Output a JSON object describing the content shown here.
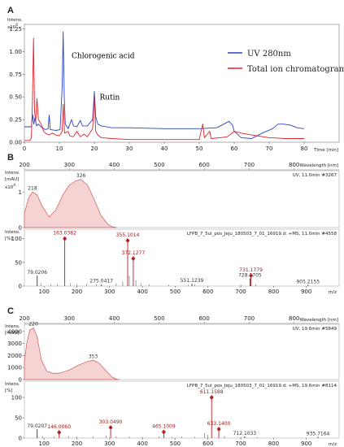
{
  "panels": {
    "a": "A",
    "b": "B",
    "c": "C"
  },
  "colors": {
    "uv": "#2a43c7",
    "tic": "#e0202a",
    "ms": "#b81c24",
    "fill": "#f6d3d3",
    "fill_stroke": "#c85a5a",
    "grid": "#dddddd"
  },
  "chart_data": [
    {
      "id": "A",
      "type": "line",
      "ylabel": "Intens.",
      "yunit": "x10^6",
      "yunit_base": "x10",
      "yunit_exp": "6",
      "xunit": "Time [min]",
      "xlim": [
        0,
        90
      ],
      "ylim": [
        0,
        1.3
      ],
      "xticks": [
        0,
        10,
        20,
        30,
        40,
        50,
        60,
        70,
        80
      ],
      "yticks": [
        "0.00",
        "0.25",
        "0.50",
        "0.75",
        "1.00",
        "1.25"
      ],
      "legend_position": "top-right",
      "series": [
        {
          "name": "UV 280nm",
          "color": "#2a43c7",
          "points": [
            [
              0,
              0.17
            ],
            [
              2,
              0.17
            ],
            [
              2.4,
              0.3
            ],
            [
              2.7,
              0.2
            ],
            [
              3,
              0.27
            ],
            [
              3.5,
              0.18
            ],
            [
              4,
              0.2
            ],
            [
              5,
              0.16
            ],
            [
              6,
              0.14
            ],
            [
              6.8,
              0.15
            ],
            [
              7.1,
              0.3
            ],
            [
              7.4,
              0.14
            ],
            [
              9,
              0.13
            ],
            [
              10.2,
              0.14
            ],
            [
              10.8,
              0.6
            ],
            [
              11.1,
              1.22
            ],
            [
              11.4,
              0.5
            ],
            [
              11.7,
              0.2
            ],
            [
              12.5,
              0.15
            ],
            [
              13.5,
              0.25
            ],
            [
              14,
              0.18
            ],
            [
              15,
              0.17
            ],
            [
              16,
              0.24
            ],
            [
              16.6,
              0.18
            ],
            [
              18,
              0.18
            ],
            [
              19.5,
              0.25
            ],
            [
              20,
              0.56
            ],
            [
              20.4,
              0.28
            ],
            [
              21,
              0.2
            ],
            [
              22,
              0.18
            ],
            [
              25,
              0.16
            ],
            [
              30,
              0.16
            ],
            [
              40,
              0.15
            ],
            [
              50,
              0.15
            ],
            [
              55,
              0.16
            ],
            [
              57,
              0.2
            ],
            [
              58.5,
              0.23
            ],
            [
              59.5,
              0.19
            ],
            [
              60,
              0.12
            ],
            [
              62,
              0.05
            ],
            [
              65,
              0.04
            ],
            [
              68,
              0.1
            ],
            [
              71,
              0.15
            ],
            [
              72.5,
              0.2
            ],
            [
              74,
              0.2
            ],
            [
              76,
              0.19
            ],
            [
              78,
              0.16
            ],
            [
              80,
              0.15
            ]
          ]
        },
        {
          "name": "Total ion chromatogram",
          "color": "#e0202a",
          "points": [
            [
              0,
              0.02
            ],
            [
              1.5,
              0.02
            ],
            [
              2,
              0.05
            ],
            [
              2.3,
              0.45
            ],
            [
              2.6,
              1.15
            ],
            [
              2.9,
              0.35
            ],
            [
              3.2,
              0.22
            ],
            [
              3.6,
              0.48
            ],
            [
              4,
              0.25
            ],
            [
              4.5,
              0.22
            ],
            [
              5,
              0.18
            ],
            [
              5.5,
              0.12
            ],
            [
              6,
              0.1
            ],
            [
              7,
              0.08
            ],
            [
              8,
              0.1
            ],
            [
              9,
              0.08
            ],
            [
              10,
              0.07
            ],
            [
              10.8,
              0.12
            ],
            [
              11.1,
              0.42
            ],
            [
              11.5,
              0.1
            ],
            [
              12.5,
              0.12
            ],
            [
              13,
              0.07
            ],
            [
              14,
              0.06
            ],
            [
              15,
              0.12
            ],
            [
              16,
              0.06
            ],
            [
              17,
              0.09
            ],
            [
              18,
              0.06
            ],
            [
              19.5,
              0.15
            ],
            [
              20,
              0.5
            ],
            [
              20.4,
              0.12
            ],
            [
              21,
              0.08
            ],
            [
              22,
              0.05
            ],
            [
              25,
              0.04
            ],
            [
              30,
              0.03
            ],
            [
              40,
              0.03
            ],
            [
              50,
              0.03
            ],
            [
              51,
              0.2
            ],
            [
              51.5,
              0.05
            ],
            [
              53,
              0.12
            ],
            [
              53.4,
              0.04
            ],
            [
              56,
              0.05
            ],
            [
              58,
              0.06
            ],
            [
              60,
              0.12
            ],
            [
              62,
              0.1
            ],
            [
              65,
              0.08
            ],
            [
              70,
              0.05
            ],
            [
              75,
              0.04
            ],
            [
              80,
              0.04
            ]
          ]
        }
      ],
      "annotations": [
        {
          "text": "Chlorogenic acid",
          "x": 13.5,
          "y": 0.93
        },
        {
          "text": "Rutin",
          "x": 21.5,
          "y": 0.47
        }
      ]
    },
    {
      "id": "B-UV",
      "type": "area",
      "ylabel": "Intens.",
      "yunit": "[mAU]",
      "yunit2": "x10^4",
      "yunit2_base": "x10",
      "yunit2_exp": "4",
      "xlabel": "Wavelength [nm]",
      "xlim": [
        200,
        900
      ],
      "ylim": [
        0,
        1.6
      ],
      "xticks": [
        200,
        300,
        400,
        500,
        600,
        700,
        800
      ],
      "yticks": [
        "0",
        "1"
      ],
      "info": "UV, 11.0min #3267",
      "x": [
        200,
        210,
        218,
        228,
        240,
        255,
        270,
        285,
        300,
        315,
        326,
        340,
        355,
        370,
        385,
        395,
        405
      ],
      "y": [
        0.4,
        0.85,
        1.0,
        0.92,
        0.6,
        0.3,
        0.5,
        0.9,
        1.2,
        1.32,
        1.35,
        1.2,
        0.8,
        0.35,
        0.1,
        0.02,
        0
      ],
      "peak_labels": [
        {
          "x": 218,
          "y": 1.0,
          "text": "218"
        },
        {
          "x": 326,
          "y": 1.35,
          "text": "326"
        }
      ]
    },
    {
      "id": "B-MS",
      "type": "bar",
      "ylabel": "Intens.",
      "yunit": "[%]",
      "xlabel": "m/z",
      "xlim": [
        40,
        1000
      ],
      "ylim": [
        0,
        120
      ],
      "xticks": [
        100,
        200,
        300,
        400,
        500,
        600,
        700,
        800,
        900
      ],
      "yticks": [
        "0",
        "50",
        "100"
      ],
      "info": "LFPB_7_5ul_pos_Jeju_180503_7_01_16919.d: +MS, 11.0min #4558",
      "peaks": [
        {
          "mz": 79.0206,
          "rel": 22,
          "label": "79.0206",
          "marker": false
        },
        {
          "mz": 163.0382,
          "rel": 100,
          "label": "163.0382",
          "marker": true
        },
        {
          "mz": 275.0417,
          "rel": 4,
          "label": "275.0417",
          "marker": false
        },
        {
          "mz": 355.1014,
          "rel": 96,
          "label": "355.1014",
          "marker": true
        },
        {
          "mz": 372.1277,
          "rel": 58,
          "label": "372.1277",
          "marker": true
        },
        {
          "mz": 551.1239,
          "rel": 5,
          "label": "551.1239",
          "marker": false
        },
        {
          "mz": 728.1705,
          "rel": 16,
          "label": "728.1705",
          "marker": false
        },
        {
          "mz": 731.1779,
          "rel": 22,
          "label": "731.1779",
          "marker": true
        },
        {
          "mz": 905.2155,
          "rel": 3,
          "label": "905.2155",
          "marker": false
        }
      ],
      "minor_peaks": [
        [
          90,
          6
        ],
        [
          120,
          4
        ],
        [
          140,
          5
        ],
        [
          180,
          6
        ],
        [
          200,
          4
        ],
        [
          230,
          5
        ],
        [
          260,
          4
        ],
        [
          320,
          6
        ],
        [
          340,
          10
        ],
        [
          360,
          22
        ],
        [
          380,
          12
        ],
        [
          395,
          6
        ],
        [
          420,
          4
        ],
        [
          480,
          3
        ],
        [
          540,
          3
        ],
        [
          560,
          4
        ],
        [
          700,
          3
        ],
        [
          745,
          4
        ]
      ]
    },
    {
      "id": "C-UV",
      "type": "area",
      "ylabel": "Intens.",
      "yunit": "[mAU]",
      "xlabel": "Wavelength [nm]",
      "xlim": [
        200,
        900
      ],
      "ylim": [
        0,
        4600
      ],
      "xticks": [
        200,
        300,
        400,
        500,
        600,
        700,
        800
      ],
      "yticks": [
        "0",
        "1000",
        "2000",
        "3000",
        "4000"
      ],
      "info": "UV, 19.6min #5849",
      "x": [
        200,
        205,
        212,
        220,
        228,
        238,
        250,
        265,
        280,
        300,
        320,
        340,
        353,
        365,
        380,
        395,
        405,
        412
      ],
      "y": [
        1500,
        3000,
        4100,
        4300,
        3600,
        1600,
        700,
        500,
        550,
        800,
        1200,
        1500,
        1600,
        1400,
        800,
        200,
        30,
        0
      ],
      "peak_labels": [
        {
          "x": 220,
          "y": 4300,
          "text": "220"
        },
        {
          "x": 353,
          "y": 1600,
          "text": "353"
        }
      ]
    },
    {
      "id": "C-MS",
      "type": "bar",
      "ylabel": "Intens.",
      "yunit": "[%]",
      "xlabel": "m/z",
      "xlim": [
        40,
        1000
      ],
      "ylim": [
        0,
        140
      ],
      "xticks": [
        100,
        200,
        300,
        400,
        500,
        600,
        700,
        800,
        900
      ],
      "yticks": [
        "0",
        "50",
        "100"
      ],
      "info": "LFPB_7_5ul_pos_Jeju_180503_7_01_16919.d: +MS, 19.6min #8114",
      "peaks": [
        {
          "mz": 79.0207,
          "rel": 22,
          "label": "79.0207",
          "marker": false
        },
        {
          "mz": 146.006,
          "rel": 14,
          "label": "146.0060",
          "marker": true
        },
        {
          "mz": 303.049,
          "rel": 26,
          "label": "303.0490",
          "marker": true
        },
        {
          "mz": 465.1009,
          "rel": 15,
          "label": "465.1009",
          "marker": true
        },
        {
          "mz": 611.1588,
          "rel": 100,
          "label": "611.1588",
          "marker": true
        },
        {
          "mz": 633.14,
          "rel": 22,
          "label": "633.1400",
          "marker": true
        },
        {
          "mz": 712.1033,
          "rel": 4,
          "label": "712.1033",
          "marker": false
        },
        {
          "mz": 935.7164,
          "rel": 3,
          "label": "935.7164",
          "marker": false
        }
      ],
      "minor_peaks": [
        [
          95,
          5
        ],
        [
          130,
          4
        ],
        [
          175,
          5
        ],
        [
          200,
          4
        ],
        [
          250,
          4
        ],
        [
          290,
          6
        ],
        [
          320,
          5
        ],
        [
          360,
          4
        ],
        [
          400,
          3
        ],
        [
          450,
          4
        ],
        [
          490,
          3
        ],
        [
          520,
          4
        ],
        [
          560,
          3
        ],
        [
          590,
          12
        ],
        [
          600,
          8
        ],
        [
          650,
          5
        ],
        [
          700,
          3
        ],
        [
          750,
          2
        ]
      ]
    }
  ]
}
